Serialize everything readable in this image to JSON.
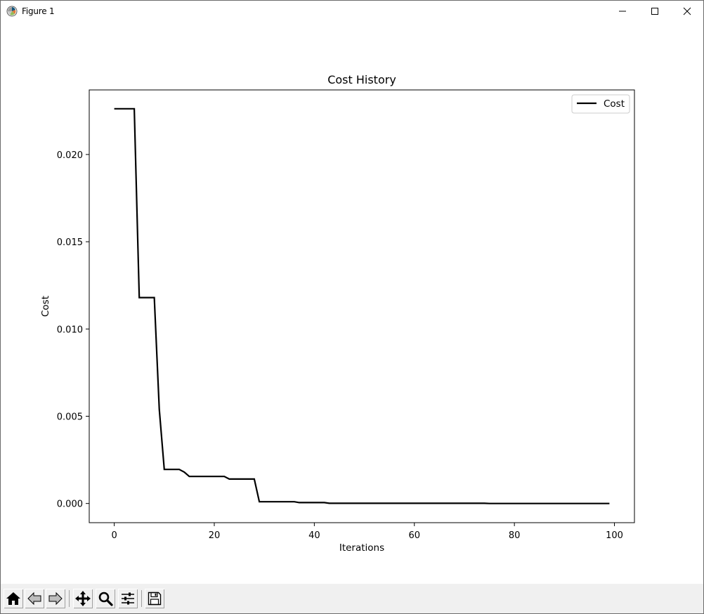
{
  "window": {
    "title": "Figure 1",
    "controls": {
      "minimize_icon": "minimize-icon",
      "maximize_icon": "maximize-icon",
      "close_icon": "close-icon"
    }
  },
  "toolbar": {
    "buttons": [
      {
        "id": "home",
        "icon": "home-icon"
      },
      {
        "id": "back",
        "icon": "back-arrow-icon"
      },
      {
        "id": "forward",
        "icon": "forward-arrow-icon"
      },
      {
        "id": "pan",
        "icon": "move-icon"
      },
      {
        "id": "zoom",
        "icon": "magnifier-icon"
      },
      {
        "id": "configure",
        "icon": "sliders-icon"
      },
      {
        "id": "save",
        "icon": "floppy-disk-icon"
      }
    ]
  },
  "chart_data": {
    "type": "line",
    "title": "Cost History",
    "xlabel": "Iterations",
    "ylabel": "Cost",
    "xlim": [
      -5,
      104
    ],
    "ylim": [
      -0.0011,
      0.0237
    ],
    "xticks": [
      0,
      20,
      40,
      60,
      80,
      100
    ],
    "xtick_labels": [
      "0",
      "20",
      "40",
      "60",
      "80",
      "100"
    ],
    "yticks": [
      0.0,
      0.005,
      0.01,
      0.015,
      0.02
    ],
    "ytick_labels": [
      "0.000",
      "0.005",
      "0.010",
      "0.015",
      "0.020"
    ],
    "grid": false,
    "legend_position": "top-right",
    "series": [
      {
        "name": "Cost",
        "color": "#000000",
        "points": [
          [
            0,
            0.02262
          ],
          [
            4,
            0.02262
          ],
          [
            5,
            0.0118
          ],
          [
            8,
            0.0118
          ],
          [
            9,
            0.0054
          ],
          [
            10,
            0.00195
          ],
          [
            13,
            0.00195
          ],
          [
            14,
            0.0018
          ],
          [
            15,
            0.00155
          ],
          [
            22,
            0.00155
          ],
          [
            23,
            0.0014
          ],
          [
            28,
            0.0014
          ],
          [
            29,
            0.0001
          ],
          [
            36,
            0.0001
          ],
          [
            37,
            5e-05
          ],
          [
            42,
            5e-05
          ],
          [
            43,
            1e-05
          ],
          [
            74,
            1e-05
          ],
          [
            75,
            0.0
          ],
          [
            99,
            0.0
          ]
        ]
      }
    ]
  }
}
